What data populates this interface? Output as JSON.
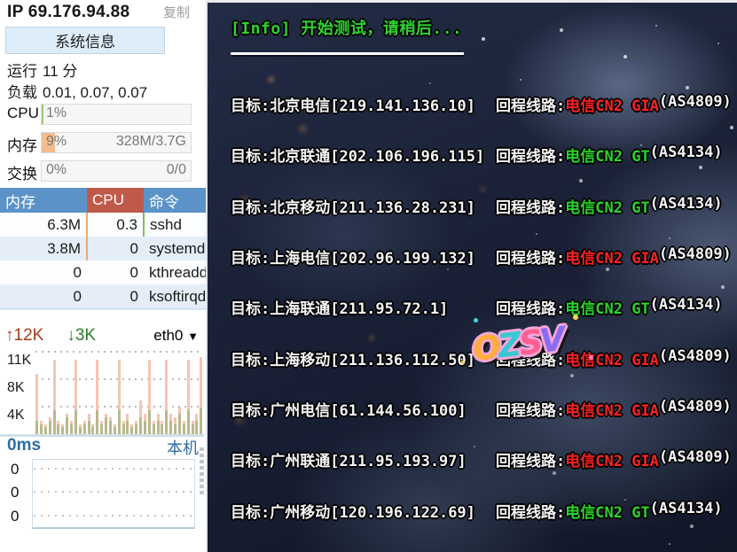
{
  "sidebar": {
    "ip": "IP 69.176.94.88",
    "copy_label": "复制",
    "sysinfo_button": "系统信息",
    "uptime": {
      "label": "运行",
      "value": "11 分"
    },
    "load": {
      "label": "负载",
      "value": "0.01, 0.07, 0.07"
    },
    "meters": [
      {
        "label": "CPU",
        "percent": "1%",
        "detail": "",
        "fill_percent": 1,
        "fill_color": "#9ccb6e"
      },
      {
        "label": "内存",
        "percent": "9%",
        "detail": "328M/3.7G",
        "fill_percent": 9,
        "fill_color": "#f3bd8d"
      },
      {
        "label": "交换",
        "percent": "0%",
        "detail": "0/0",
        "fill_percent": 0,
        "fill_color": "#cccccc"
      }
    ],
    "process_table": {
      "headers": [
        "内存",
        "CPU",
        "命令"
      ],
      "rows": [
        {
          "mem": "6.3M",
          "cpu": "0.3",
          "cmd": "sshd",
          "mem_tick": true,
          "cpu_tick": true
        },
        {
          "mem": "3.8M",
          "cpu": "0",
          "cmd": "systemd",
          "mem_tick": true,
          "cpu_tick": false
        },
        {
          "mem": "0",
          "cpu": "0",
          "cmd": "kthreadd",
          "mem_tick": false,
          "cpu_tick": false
        },
        {
          "mem": "0",
          "cpu": "0",
          "cmd": "ksoftirqd,",
          "mem_tick": false,
          "cpu_tick": false
        }
      ]
    },
    "network": {
      "up_label": "↑12K",
      "down_label": "↓3K",
      "interface": "eth0",
      "caret": "▼",
      "ylabels": [
        "11K",
        "8K",
        "4K"
      ],
      "up_color": "#f6c5b3",
      "down_color": "#b9b88c",
      "up_k": [
        9,
        2,
        1.5,
        2.5,
        11,
        2,
        1.5,
        3,
        2,
        11,
        1.5,
        2,
        3,
        1.5,
        11,
        2,
        3,
        2.5,
        1.5,
        11,
        2,
        3,
        1.5,
        2,
        5,
        3,
        11,
        2,
        3,
        2,
        11,
        3,
        2.5,
        4,
        2,
        11,
        2,
        3,
        11.5
      ],
      "down_k": [
        2,
        1.5,
        1,
        2,
        3.5,
        1.5,
        1,
        2.5,
        1.5,
        3.5,
        1,
        1.5,
        2,
        1,
        3.5,
        1.5,
        2.5,
        2,
        1,
        3.5,
        1.5,
        2,
        1,
        1.5,
        2.5,
        2,
        3.5,
        1.5,
        2,
        1.5,
        3.5,
        2,
        1.5,
        3,
        1.5,
        3.5,
        1.5,
        2,
        4
      ]
    },
    "ping": {
      "latency_label": "0ms",
      "host_label": "本机",
      "ylabels": [
        "0",
        "0",
        "0"
      ]
    }
  },
  "terminal": {
    "info_line": "[Info] 开始测试，请稍后...",
    "route_colors": {
      "red": "#ff2222",
      "green": "#2bd42b"
    },
    "rows": [
      {
        "target": "目标:北京电信[219.141.136.10]",
        "route_label": "回程线路:",
        "route": "电信CN2 GIA",
        "asn": "(AS4809)",
        "color": "red"
      },
      {
        "target": "目标:北京联通[202.106.196.115]",
        "route_label": "回程线路:",
        "route": "电信CN2 GT",
        "asn": "(AS4134)",
        "color": "green"
      },
      {
        "target": "目标:北京移动[211.136.28.231]",
        "route_label": "回程线路:",
        "route": "电信CN2 GT",
        "asn": "(AS4134)",
        "color": "green"
      },
      {
        "target": "目标:上海电信[202.96.199.132]",
        "route_label": "回程线路:",
        "route": "电信CN2 GIA",
        "asn": "(AS4809)",
        "color": "red"
      },
      {
        "target": "目标:上海联通[211.95.72.1]",
        "route_label": "回程线路:",
        "route": "电信CN2 GT",
        "asn": "(AS4134)",
        "color": "green"
      },
      {
        "target": "目标:上海移动[211.136.112.50]",
        "route_label": "回程线路:",
        "route": "电信CN2 GIA",
        "asn": "(AS4809)",
        "color": "red"
      },
      {
        "target": "目标:广州电信[61.144.56.100]",
        "route_label": "回程线路:",
        "route": "电信CN2 GIA",
        "asn": "(AS4809)",
        "color": "red"
      },
      {
        "target": "目标:广州联通[211.95.193.97]",
        "route_label": "回程线路:",
        "route": "电信CN2 GIA",
        "asn": "(AS4809)",
        "color": "red"
      },
      {
        "target": "目标:广州移动[120.196.122.69]",
        "route_label": "回程线路:",
        "route": "电信CN2 GT",
        "asn": "(AS4134)",
        "color": "green"
      }
    ],
    "watermark": "OZSV"
  }
}
